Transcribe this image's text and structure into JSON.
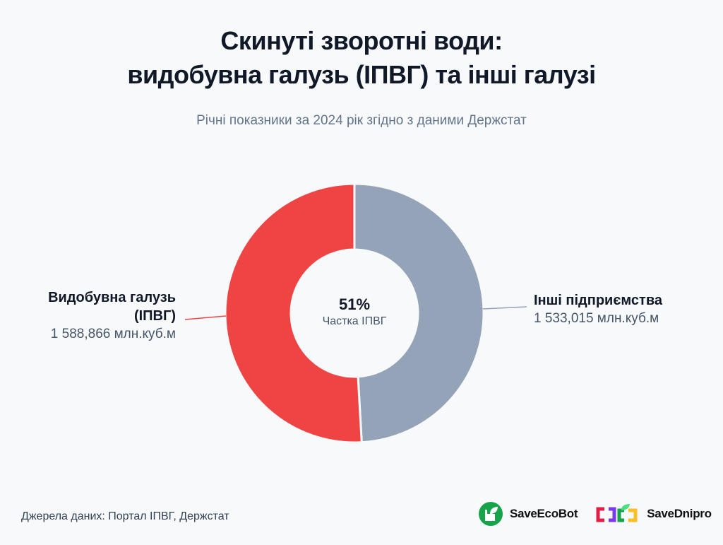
{
  "chart_data": {
    "type": "pie",
    "variant": "donut",
    "title": [
      "Скинуті зворотні води:",
      "видобувна галузь (ІПВГ) та інші галузі"
    ],
    "subtitle": "Річні показники за 2024 рік згідно з даними Держстат",
    "slices": [
      {
        "name": "Видобувна галузь (ІПВГ)",
        "name_line1": "Видобувна галузь",
        "name_line2": "(ІПВГ)",
        "value": 1588.866,
        "value_label": "1 588,866 млн.куб.м",
        "color": "#ef4444"
      },
      {
        "name": "Інші підприємства",
        "value": 1533.015,
        "value_label": "1 533,015 млн.куб.м",
        "color": "#94a3b8"
      }
    ],
    "center": {
      "value": "51%",
      "caption": "Частка ІПВГ"
    },
    "unit": "млн.куб.м"
  },
  "footer": {
    "source": "Джерела даних: Портал ІПВГ, Держстат",
    "logos": [
      "SaveEcoBot",
      "SaveDnipro"
    ]
  }
}
